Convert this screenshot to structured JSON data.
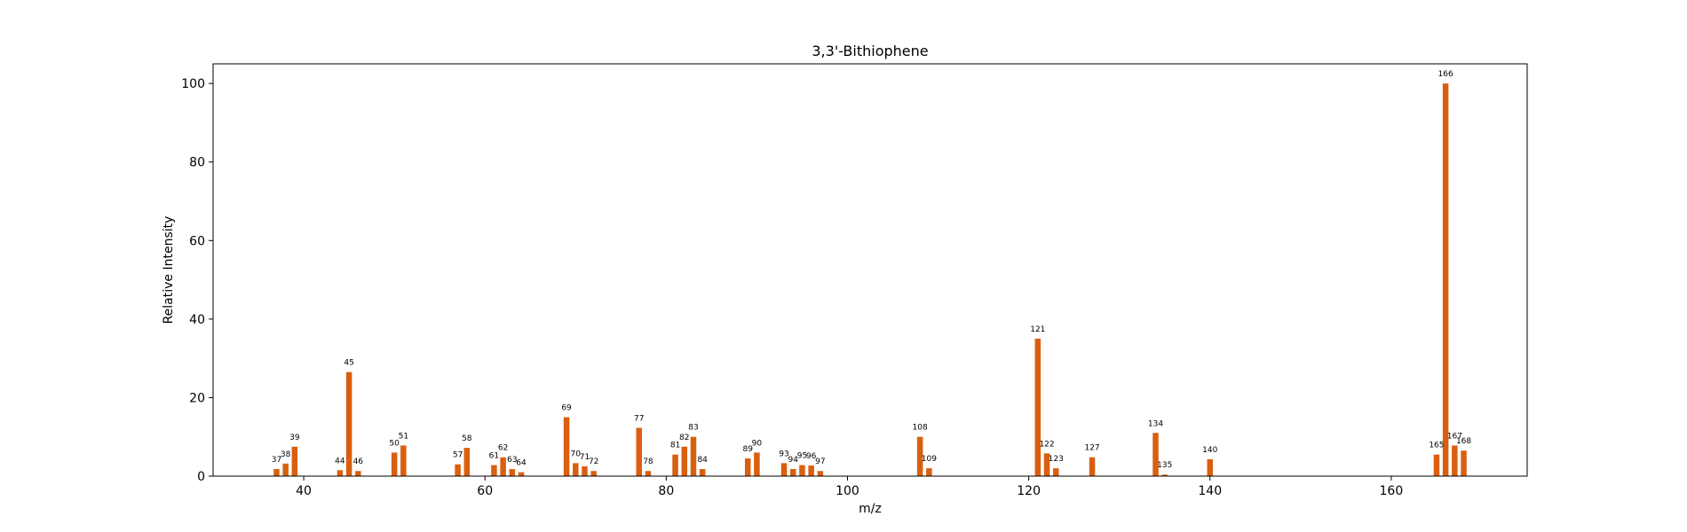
{
  "chart_data": {
    "type": "bar",
    "title": "3,3'-Bithiophene",
    "xlabel": "m/z",
    "ylabel": "Relative Intensity",
    "xlim": [
      30,
      175
    ],
    "ylim": [
      0,
      105
    ],
    "xticks": [
      40,
      60,
      80,
      100,
      120,
      140,
      160
    ],
    "yticks": [
      0,
      20,
      40,
      60,
      80,
      100
    ],
    "bar_color": "#d95f0e",
    "grid": false,
    "x": [
      37,
      38,
      39,
      44,
      45,
      46,
      50,
      51,
      57,
      58,
      61,
      62,
      63,
      64,
      69,
      70,
      71,
      72,
      77,
      78,
      81,
      82,
      83,
      84,
      89,
      90,
      93,
      94,
      95,
      96,
      97,
      108,
      109,
      121,
      122,
      123,
      127,
      134,
      135,
      140,
      165,
      166,
      167,
      168
    ],
    "values": [
      1.8,
      3.2,
      7.5,
      1.5,
      26.5,
      1.3,
      6.0,
      7.8,
      3.0,
      7.2,
      2.8,
      4.8,
      1.8,
      1.0,
      15.0,
      3.3,
      2.5,
      1.3,
      12.3,
      1.3,
      5.5,
      7.5,
      10.0,
      1.8,
      4.5,
      6.0,
      3.3,
      1.8,
      2.8,
      2.7,
      1.3,
      10.0,
      2.0,
      35.0,
      5.8,
      2.0,
      4.8,
      11.0,
      0.4,
      4.3,
      5.5,
      100.0,
      7.8,
      6.5
    ],
    "labels": [
      "37",
      "38",
      "39",
      "44",
      "45",
      "46",
      "50",
      "51",
      "57",
      "58",
      "61",
      "62",
      "63",
      "64",
      "69",
      "70",
      "71",
      "72",
      "77",
      "78",
      "81",
      "82",
      "83",
      "84",
      "89",
      "90",
      "93",
      "94",
      "95",
      "96",
      "97",
      "108",
      "109",
      "121",
      "122",
      "123",
      "127",
      "134",
      "135",
      "140",
      "165",
      "166",
      "167",
      "168"
    ]
  }
}
